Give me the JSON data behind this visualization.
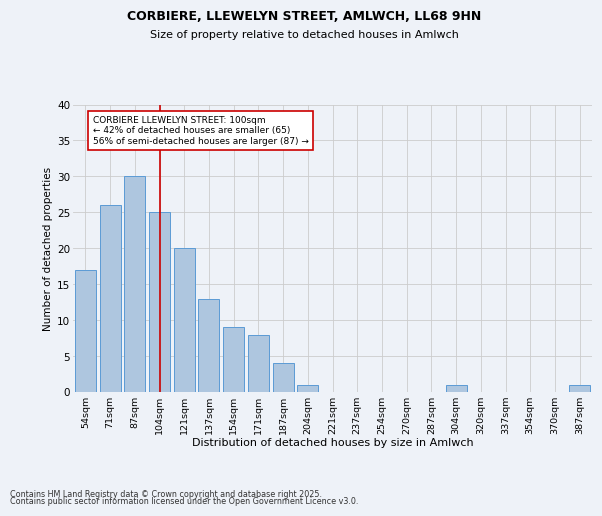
{
  "title1": "CORBIERE, LLEWELYN STREET, AMLWCH, LL68 9HN",
  "title2": "Size of property relative to detached houses in Amlwch",
  "xlabel": "Distribution of detached houses by size in Amlwch",
  "ylabel": "Number of detached properties",
  "footer1": "Contains HM Land Registry data © Crown copyright and database right 2025.",
  "footer2": "Contains public sector information licensed under the Open Government Licence v3.0.",
  "bin_labels": [
    "54sqm",
    "71sqm",
    "87sqm",
    "104sqm",
    "121sqm",
    "137sqm",
    "154sqm",
    "171sqm",
    "187sqm",
    "204sqm",
    "221sqm",
    "237sqm",
    "254sqm",
    "270sqm",
    "287sqm",
    "304sqm",
    "320sqm",
    "337sqm",
    "354sqm",
    "370sqm",
    "387sqm"
  ],
  "bar_values": [
    17,
    26,
    30,
    25,
    20,
    13,
    9,
    8,
    4,
    1,
    0,
    0,
    0,
    0,
    0,
    1,
    0,
    0,
    0,
    0,
    1
  ],
  "bar_color": "#aec6df",
  "bar_edge_color": "#5b9bd5",
  "vline_x_index": 3,
  "vline_color": "#cc0000",
  "annotation_text": "CORBIERE LLEWELYN STREET: 100sqm\n← 42% of detached houses are smaller (65)\n56% of semi-detached houses are larger (87) →",
  "annotation_box_color": "#ffffff",
  "annotation_box_edge": "#cc0000",
  "ylim": [
    0,
    40
  ],
  "yticks": [
    0,
    5,
    10,
    15,
    20,
    25,
    30,
    35,
    40
  ],
  "grid_color": "#cccccc",
  "background_color": "#eef2f8"
}
